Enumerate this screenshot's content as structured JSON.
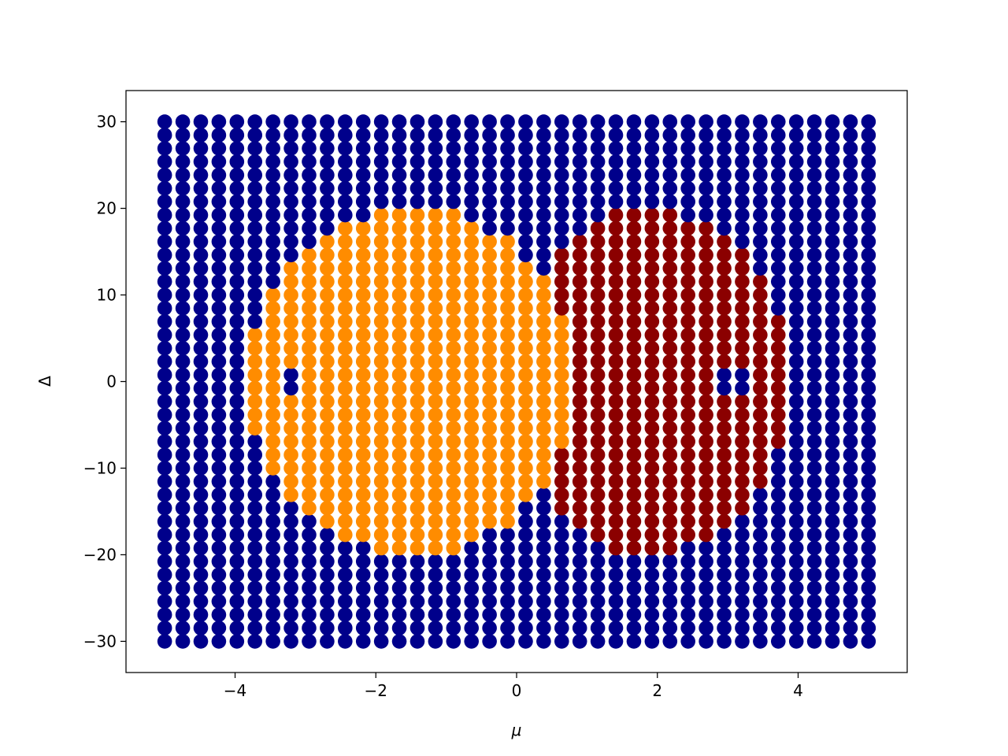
{
  "chart_data": {
    "type": "scatter",
    "title": "",
    "xlabel": "μ",
    "ylabel": "Δ",
    "xlim": [
      -5.55,
      5.55
    ],
    "ylim": [
      -33.6,
      33.6
    ],
    "x_ticks": [
      -4,
      -2,
      0,
      2,
      4
    ],
    "x_tick_labels": [
      "−4",
      "−2",
      "0",
      "2",
      "4"
    ],
    "y_ticks": [
      -30,
      -20,
      -10,
      0,
      10,
      20,
      30
    ],
    "y_tick_labels": [
      "−30",
      "−20",
      "−10",
      "0",
      "10",
      "20",
      "30"
    ],
    "grid": false,
    "legend": "none",
    "grid_points": {
      "mu": {
        "start": -5,
        "stop": 5,
        "count": 40
      },
      "delta": {
        "start": -30,
        "stop": 30,
        "count": 40
      }
    },
    "series": [
      {
        "color": "#00008b",
        "description_region": "background"
      },
      {
        "color": "#ff8c00",
        "region": {
          "mu_center": -1.5,
          "delta_radius": 20,
          "mu_radius": 2.35,
          "notch_mu": [
            -3.4,
            -3.0
          ],
          "notch_delta": [
            -1.5,
            1.5
          ]
        }
      },
      {
        "color": "#8b0000",
        "region": {
          "mu_center": 1.9,
          "delta_radius": 20,
          "mu_radius": 1.95,
          "notch_mu": [
            2.8,
            3.3
          ],
          "notch_delta": [
            -1.5,
            1.5
          ]
        }
      }
    ]
  }
}
